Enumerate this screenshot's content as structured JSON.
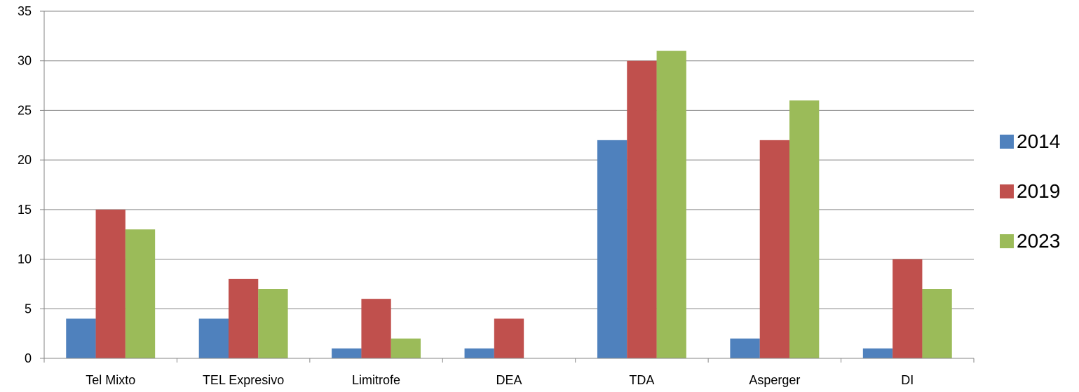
{
  "chart_data": {
    "type": "bar",
    "categories": [
      "Tel Mixto",
      "TEL Expresivo",
      "Limitrofe",
      "DEA",
      "TDA",
      "Asperger",
      "DI"
    ],
    "series": [
      {
        "name": "2014",
        "color": "#4F81BD",
        "values": [
          4,
          4,
          1,
          1,
          22,
          2,
          1
        ]
      },
      {
        "name": "2019",
        "color": "#C0504D",
        "values": [
          15,
          8,
          6,
          4,
          30,
          22,
          10
        ]
      },
      {
        "name": "2023",
        "color": "#9BBB59",
        "values": [
          13,
          7,
          2,
          0,
          31,
          26,
          7
        ]
      }
    ],
    "yticks": [
      "0",
      "5",
      "10",
      "15",
      "20",
      "25",
      "30",
      "35"
    ],
    "ylim": [
      0,
      35
    ],
    "grid": true,
    "legend_position": "right",
    "title": "",
    "xlabel": "",
    "ylabel": ""
  }
}
